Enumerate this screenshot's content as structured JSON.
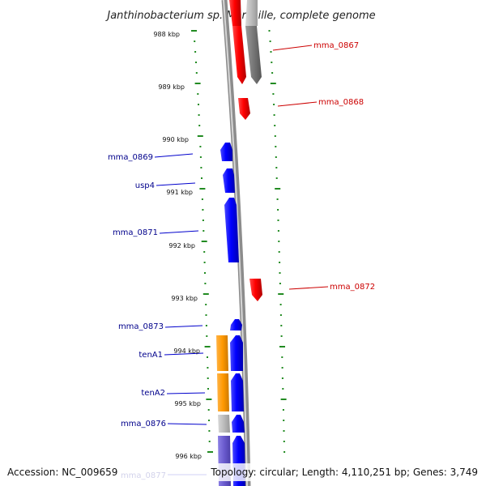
{
  "title": "Janthinobacterium sp. Marseille, complete genome",
  "footer": {
    "accession": "Accession: NC_009659",
    "summary": "Topology: circular; Length: 4,110,251 bp; Genes: 3,749"
  },
  "colors": {
    "forward_gene": "#ff0000",
    "reverse_gene": "#0000ff",
    "orange_gene": "#ff9900",
    "gray_gene_dark": "#777777",
    "gray_gene_light": "#bbbbbb",
    "purple_gene": "#6a5acd",
    "tick_color": "#228b22",
    "backbone": "#8c8c8c"
  },
  "ticks": [
    "988 kbp",
    "989 kbp",
    "990 kbp",
    "991 kbp",
    "992 kbp",
    "993 kbp",
    "994 kbp",
    "995 kbp",
    "996 kbp"
  ],
  "labels": {
    "mma_0867": "mma_0867",
    "mma_0868": "mma_0868",
    "mma_0869": "mma_0869",
    "usp4": "usp4",
    "mma_0871": "mma_0871",
    "mma_0872": "mma_0872",
    "mma_0873": "mma_0873",
    "tenA1": "tenA1",
    "tenA2": "tenA2",
    "mma_0876": "mma_0876",
    "mma_0877": "mma_0877"
  }
}
